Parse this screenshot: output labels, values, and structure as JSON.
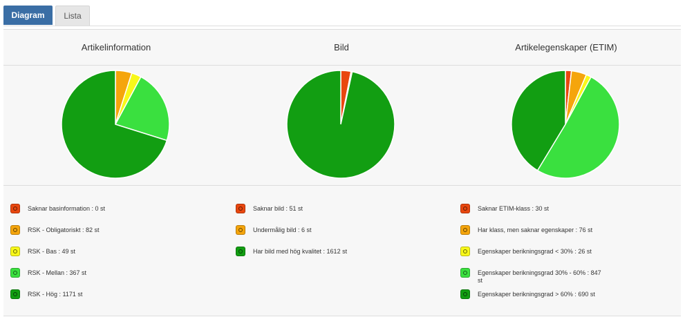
{
  "tabs": [
    "Diagram",
    "Lista"
  ],
  "chart_data": [
    {
      "type": "pie",
      "title": "Artikelinformation",
      "categories": [
        "Saknar basinformation : 0 st",
        "RSK - Obligatoriskt : 82 st",
        "RSK - Bas : 49 st",
        "RSK - Mellan : 367 st",
        "RSK - Hög : 1171 st"
      ],
      "values": [
        0,
        82,
        49,
        367,
        1171
      ],
      "colors": [
        "#e9470f",
        "#f5a50c",
        "#f8f81a",
        "#3ae03f",
        "#129e12"
      ]
    },
    {
      "type": "pie",
      "title": "Bild",
      "categories": [
        "Saknar bild : 51 st",
        "Undermålig bild : 6 st",
        "Har bild med hög kvalitet : 1612 st"
      ],
      "values": [
        51,
        6,
        1612
      ],
      "colors": [
        "#e9470f",
        "#f5a50c",
        "#129e12"
      ]
    },
    {
      "type": "pie",
      "title": "Artikelegenskaper (ETIM)",
      "categories": [
        "Saknar ETIM-klass : 30 st",
        "Har klass, men saknar egenskaper : 76 st",
        "Egenskaper berikningsgrad < 30% : 26 st",
        "Egenskaper berikningsgrad 30% - 60% : 847 st",
        "Egenskaper berikningsgrad > 60% : 690 st"
      ],
      "values": [
        30,
        76,
        26,
        847,
        690
      ],
      "colors": [
        "#e9470f",
        "#f5a50c",
        "#f8f81a",
        "#3ae03f",
        "#129e12"
      ]
    }
  ]
}
